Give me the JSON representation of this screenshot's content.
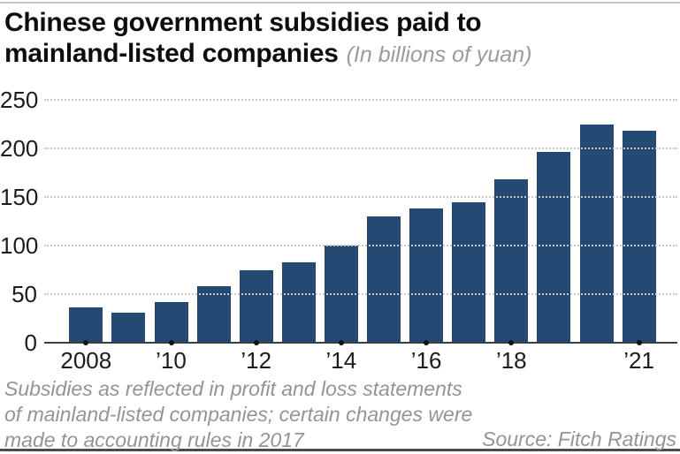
{
  "header": {
    "title_line1": "Chinese government subsidies paid to",
    "title_line2": "mainland-listed companies",
    "subtitle": "(In billions of yuan)"
  },
  "chart_data": {
    "type": "bar",
    "title": "Chinese government subsidies paid to mainland-listed companies",
    "subtitle": "(In billions of yuan)",
    "unit": "billions of yuan",
    "categories": [
      "2008",
      "2009",
      "2010",
      "2011",
      "2012",
      "2013",
      "2014",
      "2015",
      "2016",
      "2017",
      "2018",
      "2019",
      "2020",
      "2021"
    ],
    "values": [
      36,
      31,
      42,
      58,
      75,
      83,
      100,
      130,
      138,
      145,
      168,
      196,
      225,
      218
    ],
    "x_tick_labels": [
      {
        "index": 0,
        "label": "2008"
      },
      {
        "index": 2,
        "label": "’10"
      },
      {
        "index": 4,
        "label": "’12"
      },
      {
        "index": 6,
        "label": "’14"
      },
      {
        "index": 8,
        "label": "’16"
      },
      {
        "index": 10,
        "label": "’18"
      },
      {
        "index": 13,
        "label": "’21"
      }
    ],
    "y_ticks": [
      0,
      50,
      100,
      150,
      200,
      250
    ],
    "ylim": [
      0,
      250
    ],
    "grid": "horizontal-dotted-over-bars",
    "legend": "none",
    "bar_color": "#244a73"
  },
  "footnote": {
    "lines": [
      "Subsidies as reflected in profit and loss statements",
      "of mainland-listed companies; certain changes were",
      "made to accounting rules in 2017"
    ]
  },
  "source_label": "Source: Fitch Ratings",
  "colors": {
    "bar": "#244a73",
    "title_text": "#0d0d0d",
    "muted_text": "#949494",
    "axis_text": "#1c1c1c",
    "gridline": "#c9c9c9",
    "baseline": "#3d3d3d",
    "top_rule": "#c6c6c6",
    "bottom_rule": "#4c4c4c",
    "tick_dot": "#111111"
  }
}
